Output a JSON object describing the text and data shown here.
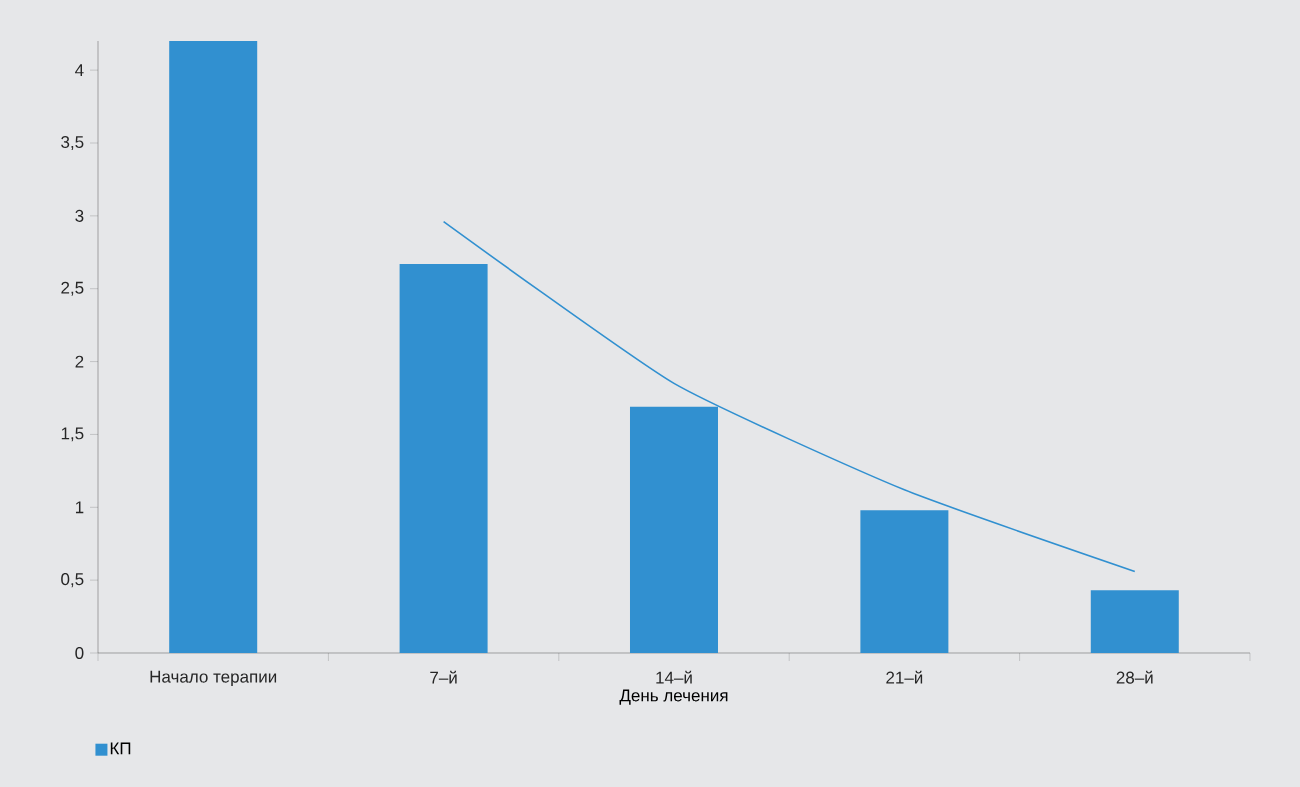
{
  "chart_data": {
    "type": "bar",
    "xlabel": "День лечения",
    "categories": [
      "Начало терапии",
      "7–й",
      "14–й",
      "21–й",
      "28–й"
    ],
    "series": [
      {
        "name": "КП",
        "color": "#3190d0",
        "values": [
          4.2,
          2.67,
          1.69,
          0.98,
          0.43
        ]
      },
      {
        "type": "line",
        "color": "#3190d0",
        "values": [
          null,
          2.96,
          1.85,
          1.12,
          0.56
        ]
      }
    ],
    "ylim": [
      0,
      4.2
    ],
    "yticks": [
      0,
      {
        "value": 0.5,
        "label": "0,5"
      },
      1,
      {
        "value": 1.5,
        "label": "1,5"
      },
      2,
      {
        "value": 2.5,
        "label": "2,5"
      },
      3,
      {
        "value": 3.5,
        "label": "3,5"
      },
      4
    ],
    "grid": false,
    "legend": "bottom left",
    "marker": "none"
  }
}
